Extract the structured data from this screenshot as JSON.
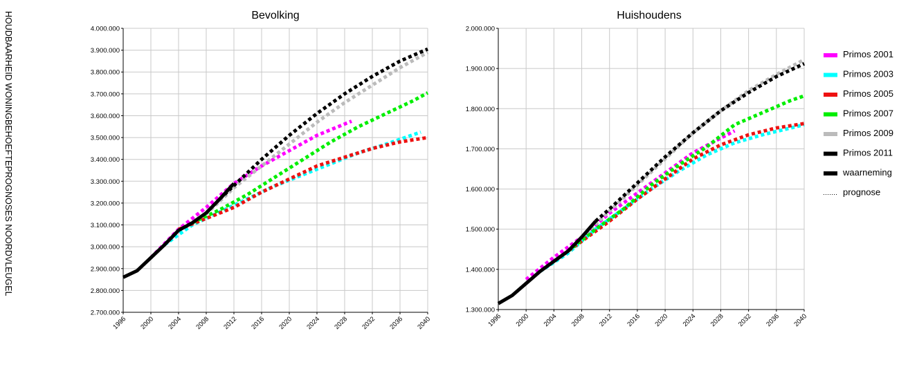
{
  "side_title": "HOUDBAARHEID WONINGBEHOEFTEPROGNOSES NOORDVLEUGEL",
  "colors": {
    "Primos 2001": "#ff00ff",
    "Primos 2003": "#00ffff",
    "Primos 2005": "#ee1111",
    "Primos 2007": "#00ee00",
    "Primos 2009": "#bbbbbb",
    "Primos 2011": "#000000",
    "waarneming": "#000000"
  },
  "legend": [
    "Primos 2001",
    "Primos 2003",
    "Primos 2005",
    "Primos 2007",
    "Primos 2009",
    "Primos 2011",
    "waarneming",
    "prognose"
  ],
  "chart_data": [
    {
      "type": "line",
      "title": "Bevolking",
      "xlim": [
        1996,
        2040
      ],
      "ylim": [
        2700000,
        4000000
      ],
      "xticks": [
        "1996",
        "2000",
        "2004",
        "2008",
        "2012",
        "2016",
        "2020",
        "2024",
        "2028",
        "2032",
        "2036",
        "2040"
      ],
      "yticks": [
        "2.700.000",
        "2.800.000",
        "2.900.000",
        "3.000.000",
        "3.100.000",
        "3.200.000",
        "3.300.000",
        "3.400.000",
        "3.500.000",
        "3.600.000",
        "3.700.000",
        "3.800.000",
        "3.900.000",
        "4.000.000"
      ],
      "grid": true,
      "series": [
        {
          "name": "Primos 2001",
          "style": "dotted",
          "x": [
            2000,
            2004,
            2008,
            2012,
            2016,
            2020,
            2024,
            2029
          ],
          "y": [
            2950000,
            3080000,
            3180000,
            3290000,
            3370000,
            3440000,
            3510000,
            3575000
          ]
        },
        {
          "name": "Primos 2003",
          "style": "dotted",
          "x": [
            2002,
            2006,
            2010,
            2014,
            2018,
            2022,
            2026,
            2030,
            2034,
            2039
          ],
          "y": [
            3010000,
            3100000,
            3160000,
            3220000,
            3280000,
            3330000,
            3380000,
            3430000,
            3470000,
            3525000
          ]
        },
        {
          "name": "Primos 2005",
          "style": "dotted",
          "x": [
            2004,
            2008,
            2012,
            2016,
            2020,
            2024,
            2028,
            2032,
            2036,
            2040
          ],
          "y": [
            3080000,
            3130000,
            3180000,
            3250000,
            3310000,
            3370000,
            3410000,
            3450000,
            3480000,
            3500000
          ]
        },
        {
          "name": "Primos 2007",
          "style": "dotted",
          "x": [
            2006,
            2010,
            2014,
            2018,
            2022,
            2026,
            2030,
            2034,
            2038,
            2040
          ],
          "y": [
            3110000,
            3170000,
            3240000,
            3320000,
            3400000,
            3480000,
            3550000,
            3610000,
            3670000,
            3705000
          ]
        },
        {
          "name": "Primos 2009",
          "style": "dotted",
          "x": [
            2008,
            2012,
            2016,
            2020,
            2024,
            2028,
            2032,
            2036,
            2040
          ],
          "y": [
            3150000,
            3270000,
            3370000,
            3470000,
            3570000,
            3660000,
            3740000,
            3820000,
            3890000
          ]
        },
        {
          "name": "Primos 2011",
          "style": "dotted",
          "x": [
            2010,
            2012,
            2016,
            2020,
            2024,
            2028,
            2032,
            2036,
            2040
          ],
          "y": [
            3220000,
            3280000,
            3400000,
            3510000,
            3610000,
            3700000,
            3780000,
            3850000,
            3905000
          ]
        },
        {
          "name": "waarneming",
          "style": "solid",
          "x": [
            1996,
            1998,
            2000,
            2002,
            2004,
            2006,
            2008,
            2010,
            2012
          ],
          "y": [
            2860000,
            2890000,
            2950000,
            3010000,
            3075000,
            3110000,
            3155000,
            3220000,
            3290000
          ]
        }
      ]
    },
    {
      "type": "line",
      "title": "Huishoudens",
      "xlim": [
        1996,
        2040
      ],
      "ylim": [
        1300000,
        2000000
      ],
      "xticks": [
        "1996",
        "2000",
        "2004",
        "2008",
        "2012",
        "2016",
        "2020",
        "2024",
        "2028",
        "2032",
        "2036",
        "2040"
      ],
      "yticks": [
        "1.300.000",
        "1.400.000",
        "1.500.000",
        "1.600.000",
        "1.700.000",
        "1.800.000",
        "1.900.000",
        "2.000.000"
      ],
      "grid": true,
      "series": [
        {
          "name": "Primos 2001",
          "style": "dotted",
          "x": [
            2000,
            2004,
            2008,
            2012,
            2016,
            2020,
            2024,
            2030
          ],
          "y": [
            1375000,
            1430000,
            1480000,
            1540000,
            1590000,
            1640000,
            1690000,
            1745000
          ]
        },
        {
          "name": "Primos 2003",
          "style": "dotted",
          "x": [
            2002,
            2006,
            2010,
            2014,
            2018,
            2022,
            2026,
            2030,
            2034,
            2040
          ],
          "y": [
            1395000,
            1440000,
            1500000,
            1550000,
            1600000,
            1645000,
            1685000,
            1715000,
            1735000,
            1760000
          ]
        },
        {
          "name": "Primos 2005",
          "style": "dotted",
          "x": [
            2004,
            2008,
            2012,
            2016,
            2020,
            2024,
            2028,
            2032,
            2036,
            2040
          ],
          "y": [
            1420000,
            1470000,
            1520000,
            1575000,
            1625000,
            1675000,
            1710000,
            1735000,
            1752000,
            1763000
          ]
        },
        {
          "name": "Primos 2007",
          "style": "dotted",
          "x": [
            2006,
            2010,
            2014,
            2018,
            2022,
            2026,
            2030,
            2034,
            2038,
            2040
          ],
          "y": [
            1445000,
            1500000,
            1550000,
            1610000,
            1660000,
            1705000,
            1760000,
            1790000,
            1820000,
            1832000
          ]
        },
        {
          "name": "Primos 2009",
          "style": "dotted",
          "x": [
            2008,
            2012,
            2016,
            2020,
            2024,
            2028,
            2032,
            2036,
            2040
          ],
          "y": [
            1480000,
            1545000,
            1610000,
            1675000,
            1740000,
            1795000,
            1845000,
            1885000,
            1922000
          ]
        },
        {
          "name": "Primos 2011",
          "style": "dotted",
          "x": [
            2010,
            2012,
            2016,
            2020,
            2024,
            2028,
            2032,
            2036,
            2040
          ],
          "y": [
            1520000,
            1550000,
            1615000,
            1680000,
            1740000,
            1795000,
            1840000,
            1880000,
            1912000
          ]
        },
        {
          "name": "waarneming",
          "style": "solid",
          "x": [
            1996,
            1998,
            2000,
            2002,
            2004,
            2006,
            2008,
            2010
          ],
          "y": [
            1315000,
            1335000,
            1365000,
            1395000,
            1420000,
            1445000,
            1480000,
            1520000
          ]
        }
      ]
    }
  ]
}
